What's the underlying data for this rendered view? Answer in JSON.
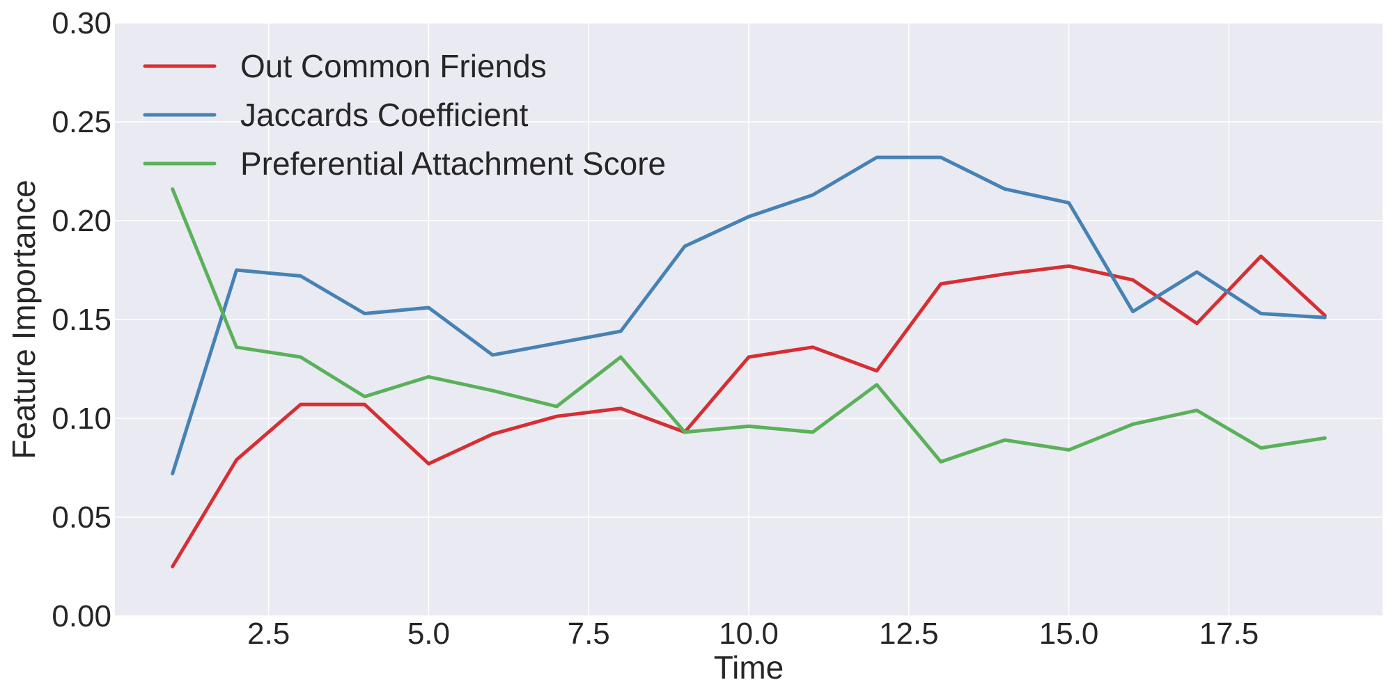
{
  "chart_data": {
    "type": "line",
    "title": "",
    "xlabel": "Time",
    "ylabel": "Feature Importance",
    "xlim": [
      0.1,
      19.9
    ],
    "ylim": [
      0.0,
      0.3
    ],
    "xticks": [
      2.5,
      5.0,
      7.5,
      10.0,
      12.5,
      15.0,
      17.5
    ],
    "xtick_labels": [
      "2.5",
      "5.0",
      "7.5",
      "10.0",
      "12.5",
      "15.0",
      "17.5"
    ],
    "yticks": [
      0.0,
      0.05,
      0.1,
      0.15,
      0.2,
      0.25,
      0.3
    ],
    "ytick_labels": [
      "0.00",
      "0.05",
      "0.10",
      "0.15",
      "0.20",
      "0.25",
      "0.30"
    ],
    "grid": true,
    "legend_position": "top-left",
    "background_color": "#eaeaf2",
    "x": [
      1,
      2,
      3,
      4,
      5,
      6,
      7,
      8,
      9,
      10,
      11,
      12,
      13,
      14,
      15,
      16,
      17,
      18,
      19
    ],
    "series": [
      {
        "name": "Out Common Friends",
        "color": "#d62f33",
        "values": [
          0.025,
          0.079,
          0.107,
          0.107,
          0.077,
          0.092,
          0.101,
          0.105,
          0.093,
          0.131,
          0.136,
          0.124,
          0.168,
          0.173,
          0.177,
          0.17,
          0.148,
          0.182,
          0.152
        ]
      },
      {
        "name": "Jaccards Coefficient",
        "color": "#4682b4",
        "values": [
          0.072,
          0.175,
          0.172,
          0.153,
          0.156,
          0.132,
          0.138,
          0.144,
          0.187,
          0.202,
          0.213,
          0.232,
          0.232,
          0.216,
          0.209,
          0.154,
          0.174,
          0.153,
          0.151
        ]
      },
      {
        "name": "Preferential Attachment Score",
        "color": "#5ab15a",
        "values": [
          0.216,
          0.136,
          0.131,
          0.111,
          0.121,
          0.114,
          0.106,
          0.131,
          0.093,
          0.096,
          0.093,
          0.117,
          0.078,
          0.089,
          0.084,
          0.097,
          0.104,
          0.085,
          0.09
        ]
      }
    ]
  }
}
